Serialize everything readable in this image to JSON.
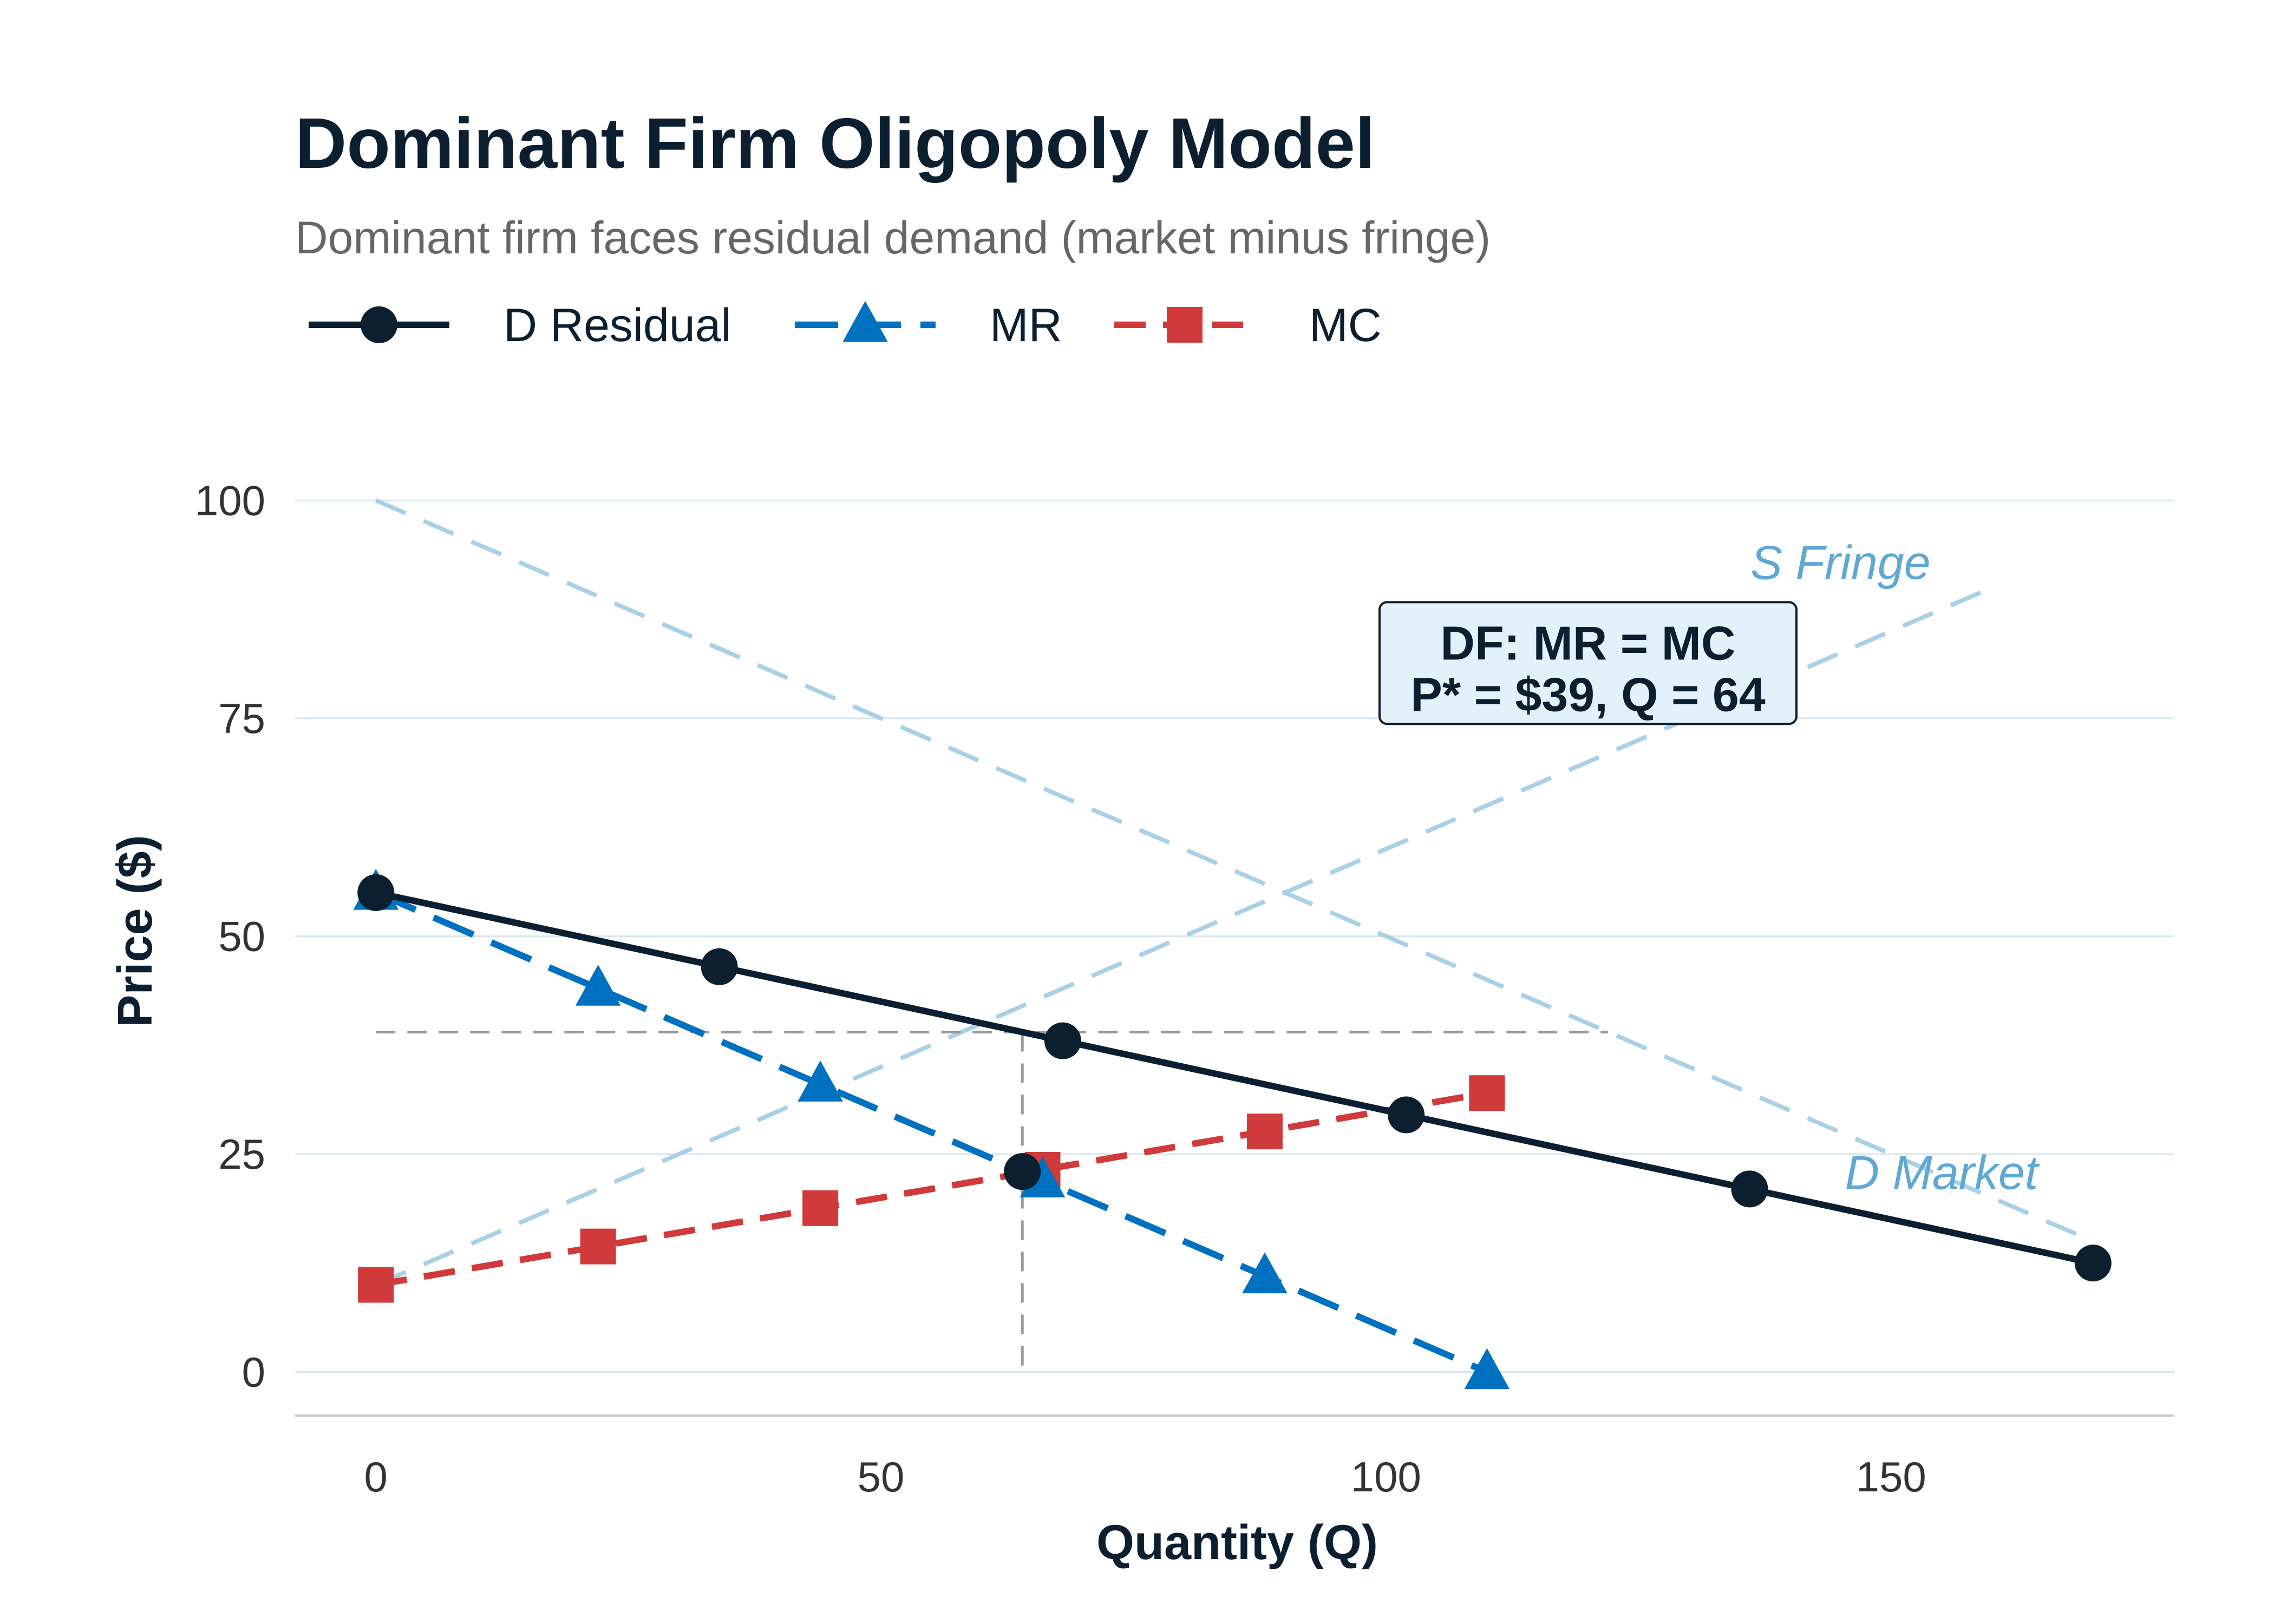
{
  "chart_data": {
    "type": "line",
    "title": "Dominant Firm Oligopoly Model",
    "subtitle": "Dominant firm faces residual demand (market minus fringe)",
    "xlabel": "Quantity (Q)",
    "ylabel": "Price ($)",
    "xlim": [
      -8,
      178
    ],
    "ylim": [
      -5,
      104
    ],
    "xticks": [
      0,
      50,
      100,
      150
    ],
    "yticks": [
      0,
      25,
      50,
      75,
      100
    ],
    "grid": "horizontal",
    "legend_position": "top-left",
    "series": [
      {
        "name": "D Residual",
        "color": "#0b1f30",
        "line": "solid",
        "marker": "circle",
        "x": [
          0,
          34,
          68,
          102,
          136,
          170
        ],
        "y": [
          55,
          46.5,
          38,
          29.5,
          21,
          12.5
        ]
      },
      {
        "name": "MR",
        "color": "#0070c0",
        "line": "dashed",
        "marker": "triangle",
        "x": [
          0,
          22,
          44,
          66,
          88,
          110
        ],
        "y": [
          55,
          44,
          33,
          22,
          11,
          0
        ]
      },
      {
        "name": "MC",
        "color": "#d03a3a",
        "line": "dashed",
        "marker": "square",
        "x": [
          0,
          22,
          44,
          66,
          88,
          110
        ],
        "y": [
          10,
          14.4,
          18.8,
          23.2,
          27.6,
          32
        ]
      }
    ],
    "background_curves": [
      {
        "label": "D Market",
        "color": "#a8d0e6",
        "label_color": "#5fa8d3",
        "x": [
          0,
          170
        ],
        "y": [
          100,
          15
        ]
      },
      {
        "label": "S Fringe",
        "color": "#a8d0e6",
        "label_color": "#5fa8d3",
        "x": [
          0,
          160
        ],
        "y": [
          10,
          90
        ]
      }
    ],
    "reference_lines": {
      "price": 39,
      "quantity": 64,
      "horizontal_x_range": [
        0,
        122
      ],
      "color": "#999999"
    },
    "equilibrium_point": {
      "x": 64,
      "y": 23
    },
    "annotation": {
      "lines": [
        "DF: MR = MC",
        "P* = $39, Q = 64"
      ],
      "x": 120,
      "y": 81,
      "background": "#e3f1fa",
      "border": "#0b1f30"
    },
    "curve_labels": [
      {
        "text": "S Fringe",
        "x": 145,
        "y": 91
      },
      {
        "text": "D Market",
        "x": 155,
        "y": 21
      }
    ]
  }
}
